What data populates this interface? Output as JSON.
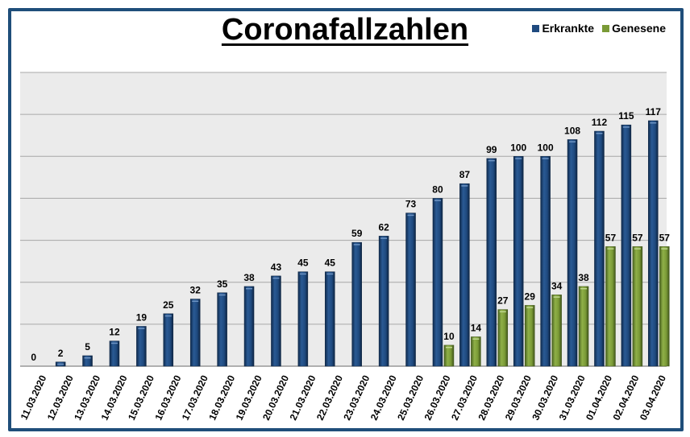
{
  "chart_data": {
    "type": "bar",
    "title": "Coronafallzahlen",
    "xlabel": "",
    "ylabel": "",
    "ylim": [
      0,
      140
    ],
    "grid": true,
    "gridline_step": 20,
    "legend_position": "top-right",
    "categories": [
      "11.03.2020",
      "12.03.2020",
      "13.03.2020",
      "14.03.2020",
      "15.03.2020",
      "16.03.2020",
      "17.03.2020",
      "18.03.2020",
      "19.03.2020",
      "20.03.2020",
      "21.03.2020",
      "22.03.2020",
      "23.03.2020",
      "24.03.2020",
      "25.03.2020",
      "26.03.2020",
      "27.03.2020",
      "28.03.2020",
      "29.03.2020",
      "30.03.2020",
      "31.03.2020",
      "01.04.2020",
      "02.04.2020",
      "03.04.2020"
    ],
    "series": [
      {
        "name": "Erkrankte",
        "color": "#1f4a7f",
        "values": [
          0,
          2,
          5,
          12,
          19,
          25,
          32,
          35,
          38,
          43,
          45,
          45,
          59,
          62,
          73,
          80,
          87,
          99,
          100,
          100,
          108,
          112,
          115,
          117
        ]
      },
      {
        "name": "Genesene",
        "color": "#7a9a36",
        "values": [
          null,
          null,
          null,
          null,
          null,
          null,
          null,
          null,
          null,
          null,
          null,
          null,
          null,
          null,
          null,
          10,
          14,
          27,
          29,
          34,
          38,
          57,
          57,
          57
        ]
      }
    ]
  }
}
